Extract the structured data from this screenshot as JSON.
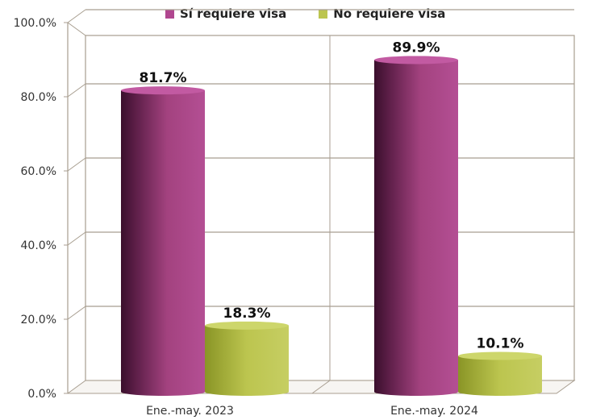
{
  "chart_data": {
    "type": "bar",
    "categories": [
      "Ene.-may. 2023",
      "Ene.-may. 2024"
    ],
    "series": [
      {
        "name": "Sí requiere visa",
        "values": [
          81.7,
          89.9
        ],
        "value_labels": [
          "81.7%",
          "89.9%"
        ],
        "color": "#b0468f"
      },
      {
        "name": "No requiere visa",
        "values": [
          18.3,
          10.1
        ],
        "value_labels": [
          "18.3%",
          "10.1%"
        ],
        "color": "#bcc54f"
      }
    ],
    "ylim": [
      0,
      100
    ],
    "yticks": [
      0,
      20,
      40,
      60,
      80,
      100
    ],
    "ytick_labels": [
      "0.0%",
      "20.0%",
      "40.0%",
      "60.0%",
      "80.0%",
      "100.0%"
    ],
    "title": "",
    "xlabel": "",
    "ylabel": "",
    "grid": true,
    "legend_position": "top"
  }
}
